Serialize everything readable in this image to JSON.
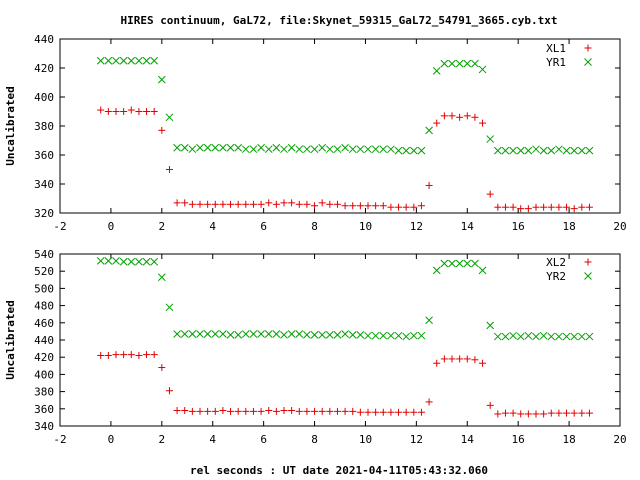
{
  "chart_data": {
    "title": "HIRES continuum, GaL72, file:Skynet_59315_GaL72_54791_3665.cyb.txt",
    "xlabel": "rel seconds : UT date 2021-04-11T05:43:32.060",
    "panels": [
      {
        "type": "scatter",
        "ylabel": "Uncalibrated",
        "xlim": [
          -2,
          20
        ],
        "ylim": [
          320,
          440
        ],
        "xticks": [
          -2,
          0,
          2,
          4,
          6,
          8,
          10,
          12,
          14,
          16,
          18,
          20
        ],
        "yticks": [
          320,
          340,
          360,
          380,
          400,
          420,
          440
        ],
        "legend_position": "top-right",
        "series": [
          {
            "name": "XL1",
            "marker": "plus",
            "color": "#e00000",
            "x": [
              -0.4,
              -0.1,
              0.2,
              0.5,
              0.8,
              1.1,
              1.4,
              1.7,
              2.0,
              2.3,
              2.6,
              2.9,
              3.2,
              3.5,
              3.8,
              4.1,
              4.4,
              4.7,
              5.0,
              5.3,
              5.6,
              5.9,
              6.2,
              6.5,
              6.8,
              7.1,
              7.4,
              7.7,
              8.0,
              8.3,
              8.6,
              8.9,
              9.2,
              9.5,
              9.8,
              10.1,
              10.4,
              10.7,
              11.0,
              11.3,
              11.6,
              11.9,
              12.2,
              12.5,
              12.8,
              13.1,
              13.4,
              13.7,
              14.0,
              14.3,
              14.6,
              14.9,
              15.2,
              15.5,
              15.8,
              16.1,
              16.4,
              16.7,
              17.0,
              17.3,
              17.6,
              17.9,
              18.2,
              18.5,
              18.8
            ],
            "y": [
              391,
              390,
              390,
              390,
              391,
              390,
              390,
              390,
              377,
              350,
              327,
              327,
              326,
              326,
              326,
              326,
              326,
              326,
              326,
              326,
              326,
              326,
              327,
              326,
              327,
              327,
              326,
              326,
              325,
              327,
              326,
              326,
              325,
              325,
              325,
              325,
              325,
              325,
              324,
              324,
              324,
              324,
              325,
              339,
              382,
              387,
              387,
              386,
              387,
              386,
              382,
              333,
              324,
              324,
              324,
              323,
              323,
              324,
              324,
              324,
              324,
              324,
              323,
              324,
              324
            ]
          },
          {
            "name": "YR1",
            "marker": "cross",
            "color": "#00a000",
            "x": [
              -0.4,
              -0.1,
              0.2,
              0.5,
              0.8,
              1.1,
              1.4,
              1.7,
              2.0,
              2.3,
              2.6,
              2.9,
              3.2,
              3.5,
              3.8,
              4.1,
              4.4,
              4.7,
              5.0,
              5.3,
              5.6,
              5.9,
              6.2,
              6.5,
              6.8,
              7.1,
              7.4,
              7.7,
              8.0,
              8.3,
              8.6,
              8.9,
              9.2,
              9.5,
              9.8,
              10.1,
              10.4,
              10.7,
              11.0,
              11.3,
              11.6,
              11.9,
              12.2,
              12.5,
              12.8,
              13.1,
              13.4,
              13.7,
              14.0,
              14.3,
              14.6,
              14.9,
              15.2,
              15.5,
              15.8,
              16.1,
              16.4,
              16.7,
              17.0,
              17.3,
              17.6,
              17.9,
              18.2,
              18.5,
              18.8
            ],
            "y": [
              425,
              425,
              425,
              425,
              425,
              425,
              425,
              425,
              412,
              386,
              365,
              365,
              364,
              365,
              365,
              365,
              365,
              365,
              365,
              364,
              364,
              365,
              364,
              365,
              364,
              365,
              364,
              364,
              364,
              365,
              364,
              364,
              365,
              364,
              364,
              364,
              364,
              364,
              364,
              363,
              363,
              363,
              363,
              377,
              418,
              423,
              423,
              423,
              423,
              423,
              419,
              371,
              363,
              363,
              363,
              363,
              363,
              364,
              363,
              363,
              364,
              363,
              363,
              363,
              363
            ]
          }
        ]
      },
      {
        "type": "scatter",
        "ylabel": "Uncalibrated",
        "xlim": [
          -2,
          20
        ],
        "ylim": [
          340,
          540
        ],
        "xticks": [
          -2,
          0,
          2,
          4,
          6,
          8,
          10,
          12,
          14,
          16,
          18,
          20
        ],
        "yticks": [
          340,
          360,
          380,
          400,
          420,
          440,
          460,
          480,
          500,
          520,
          540
        ],
        "legend_position": "top-right",
        "series": [
          {
            "name": "XL2",
            "marker": "plus",
            "color": "#e00000",
            "x": [
              -0.4,
              -0.1,
              0.2,
              0.5,
              0.8,
              1.1,
              1.4,
              1.7,
              2.0,
              2.3,
              2.6,
              2.9,
              3.2,
              3.5,
              3.8,
              4.1,
              4.4,
              4.7,
              5.0,
              5.3,
              5.6,
              5.9,
              6.2,
              6.5,
              6.8,
              7.1,
              7.4,
              7.7,
              8.0,
              8.3,
              8.6,
              8.9,
              9.2,
              9.5,
              9.8,
              10.1,
              10.4,
              10.7,
              11.0,
              11.3,
              11.6,
              11.9,
              12.2,
              12.5,
              12.8,
              13.1,
              13.4,
              13.7,
              14.0,
              14.3,
              14.6,
              14.9,
              15.2,
              15.5,
              15.8,
              16.1,
              16.4,
              16.7,
              17.0,
              17.3,
              17.6,
              17.9,
              18.2,
              18.5,
              18.8
            ],
            "y": [
              422,
              422,
              423,
              423,
              423,
              422,
              423,
              423,
              408,
              381,
              358,
              358,
              357,
              357,
              357,
              357,
              358,
              357,
              357,
              357,
              357,
              357,
              358,
              357,
              358,
              358,
              357,
              357,
              357,
              357,
              357,
              357,
              357,
              357,
              356,
              356,
              356,
              356,
              356,
              356,
              356,
              356,
              356,
              368,
              413,
              418,
              418,
              418,
              418,
              417,
              413,
              364,
              354,
              355,
              355,
              354,
              354,
              354,
              354,
              355,
              355,
              355,
              355,
              355,
              355
            ]
          },
          {
            "name": "YR2",
            "marker": "cross",
            "color": "#00a000",
            "x": [
              -0.4,
              -0.1,
              0.2,
              0.5,
              0.8,
              1.1,
              1.4,
              1.7,
              2.0,
              2.3,
              2.6,
              2.9,
              3.2,
              3.5,
              3.8,
              4.1,
              4.4,
              4.7,
              5.0,
              5.3,
              5.6,
              5.9,
              6.2,
              6.5,
              6.8,
              7.1,
              7.4,
              7.7,
              8.0,
              8.3,
              8.6,
              8.9,
              9.2,
              9.5,
              9.8,
              10.1,
              10.4,
              10.7,
              11.0,
              11.3,
              11.6,
              11.9,
              12.2,
              12.5,
              12.8,
              13.1,
              13.4,
              13.7,
              14.0,
              14.3,
              14.6,
              14.9,
              15.2,
              15.5,
              15.8,
              16.1,
              16.4,
              16.7,
              17.0,
              17.3,
              17.6,
              17.9,
              18.2,
              18.5,
              18.8
            ],
            "y": [
              532,
              532,
              532,
              531,
              531,
              531,
              531,
              531,
              513,
              478,
              447,
              447,
              447,
              447,
              447,
              447,
              447,
              446,
              446,
              447,
              447,
              447,
              447,
              447,
              446,
              447,
              447,
              446,
              446,
              446,
              446,
              446,
              447,
              446,
              446,
              445,
              445,
              445,
              445,
              445,
              444,
              445,
              445,
              463,
              521,
              529,
              529,
              529,
              529,
              529,
              521,
              457,
              444,
              444,
              445,
              444,
              445,
              444,
              445,
              444,
              444,
              444,
              444,
              444,
              444
            ]
          }
        ]
      }
    ]
  }
}
